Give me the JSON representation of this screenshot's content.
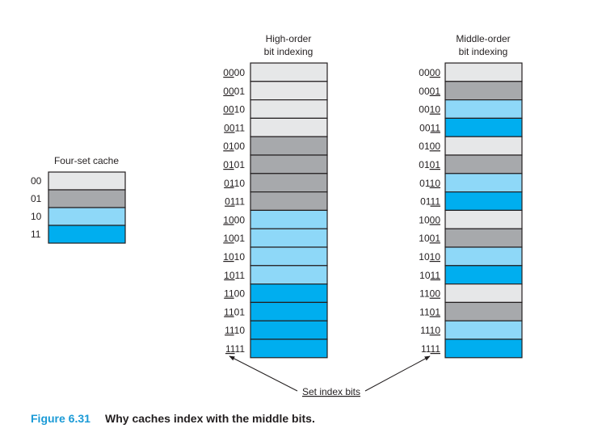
{
  "colors": {
    "set_00": "#e6e7e8",
    "set_01": "#a7a9ac",
    "set_10": "#8ed8f8",
    "set_11": "#00aeef",
    "caption_accent": "#1a9ad6",
    "stroke": "#231f20"
  },
  "four_set": {
    "title": "Four-set cache",
    "rows": [
      {
        "label": "00",
        "set": "00"
      },
      {
        "label": "01",
        "set": "01"
      },
      {
        "label": "10",
        "set": "10"
      },
      {
        "label": "11",
        "set": "11"
      }
    ]
  },
  "high_order": {
    "title_line1": "High-order",
    "title_line2": "bit indexing",
    "index_bits": "0-1",
    "rows": [
      {
        "prefix": "",
        "index": "00",
        "suffix": "00",
        "set": "00"
      },
      {
        "prefix": "",
        "index": "00",
        "suffix": "01",
        "set": "00"
      },
      {
        "prefix": "",
        "index": "00",
        "suffix": "10",
        "set": "00"
      },
      {
        "prefix": "",
        "index": "00",
        "suffix": "11",
        "set": "00"
      },
      {
        "prefix": "",
        "index": "01",
        "suffix": "00",
        "set": "01"
      },
      {
        "prefix": "",
        "index": "01",
        "suffix": "01",
        "set": "01"
      },
      {
        "prefix": "",
        "index": "01",
        "suffix": "10",
        "set": "01"
      },
      {
        "prefix": "",
        "index": "01",
        "suffix": "11",
        "set": "01"
      },
      {
        "prefix": "",
        "index": "10",
        "suffix": "00",
        "set": "10"
      },
      {
        "prefix": "",
        "index": "10",
        "suffix": "01",
        "set": "10"
      },
      {
        "prefix": "",
        "index": "10",
        "suffix": "10",
        "set": "10"
      },
      {
        "prefix": "",
        "index": "10",
        "suffix": "11",
        "set": "10"
      },
      {
        "prefix": "",
        "index": "11",
        "suffix": "00",
        "set": "11"
      },
      {
        "prefix": "",
        "index": "11",
        "suffix": "01",
        "set": "11"
      },
      {
        "prefix": "",
        "index": "11",
        "suffix": "10",
        "set": "11"
      },
      {
        "prefix": "",
        "index": "11",
        "suffix": "11",
        "set": "11"
      }
    ]
  },
  "middle_order": {
    "title_line1": "Middle-order",
    "title_line2": "bit indexing",
    "rows": [
      {
        "prefix": "00",
        "index": "00",
        "suffix": "",
        "set": "00"
      },
      {
        "prefix": "00",
        "index": "01",
        "suffix": "",
        "set": "01"
      },
      {
        "prefix": "00",
        "index": "10",
        "suffix": "",
        "set": "10"
      },
      {
        "prefix": "00",
        "index": "11",
        "suffix": "",
        "set": "11"
      },
      {
        "prefix": "01",
        "index": "00",
        "suffix": "",
        "set": "00"
      },
      {
        "prefix": "01",
        "index": "01",
        "suffix": "",
        "set": "01"
      },
      {
        "prefix": "01",
        "index": "10",
        "suffix": "",
        "set": "10"
      },
      {
        "prefix": "01",
        "index": "11",
        "suffix": "",
        "set": "11"
      },
      {
        "prefix": "10",
        "index": "00",
        "suffix": "",
        "set": "00"
      },
      {
        "prefix": "10",
        "index": "01",
        "suffix": "",
        "set": "01"
      },
      {
        "prefix": "10",
        "index": "10",
        "suffix": "",
        "set": "10"
      },
      {
        "prefix": "10",
        "index": "11",
        "suffix": "",
        "set": "11"
      },
      {
        "prefix": "11",
        "index": "00",
        "suffix": "",
        "set": "00"
      },
      {
        "prefix": "11",
        "index": "01",
        "suffix": "",
        "set": "01"
      },
      {
        "prefix": "11",
        "index": "10",
        "suffix": "",
        "set": "10"
      },
      {
        "prefix": "11",
        "index": "11",
        "suffix": "",
        "set": "11"
      }
    ]
  },
  "annotation": "Set index bits",
  "caption": {
    "number": "Figure 6.31",
    "text": "Why caches index with the middle bits."
  }
}
